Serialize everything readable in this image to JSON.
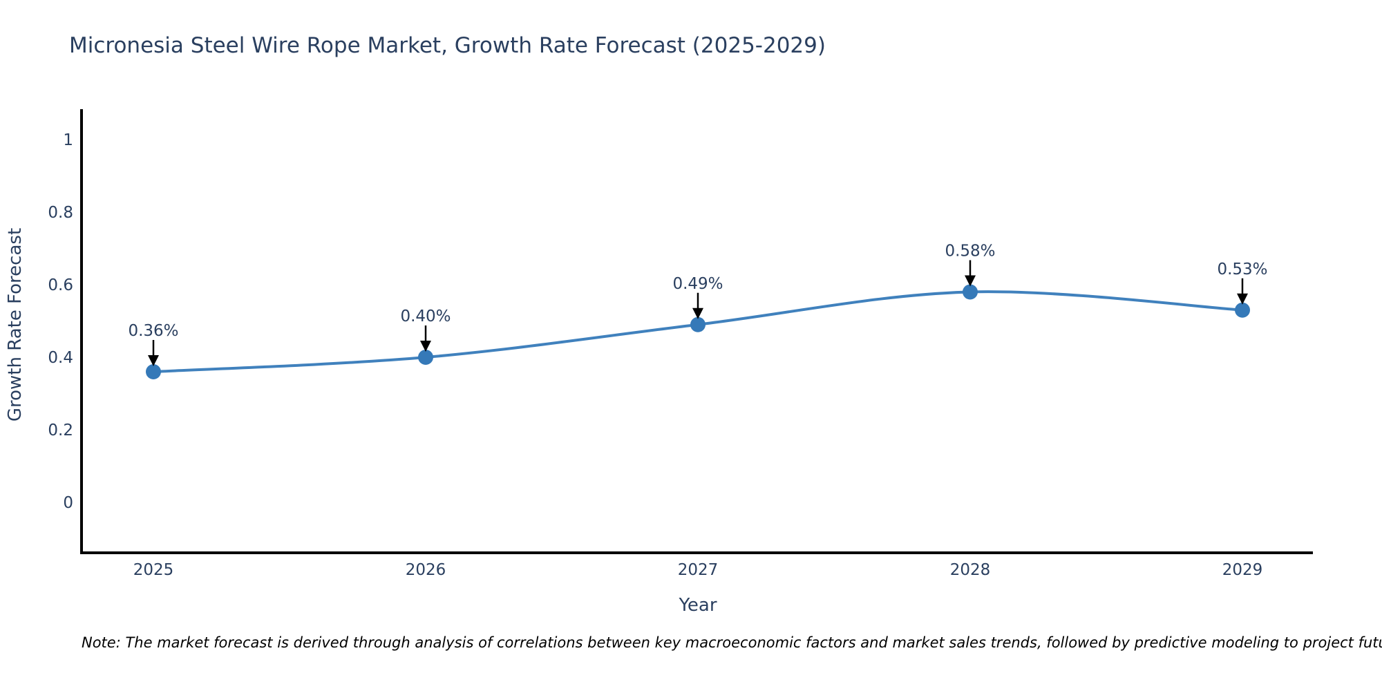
{
  "note": "Note: The market forecast is derived through analysis of correlations between key macroeconomic factors and market sales trends, followed by predictive modeling to project future sales",
  "chart_data": {
    "type": "line",
    "title": "Micronesia Steel Wire Rope Market, Growth Rate Forecast (2025-2029)",
    "x": [
      "2025",
      "2026",
      "2027",
      "2028",
      "2029"
    ],
    "series": [
      {
        "name": "Growth Rate Forecast",
        "values": [
          0.36,
          0.4,
          0.49,
          0.58,
          0.53
        ],
        "point_labels": [
          "0.36%",
          "0.40%",
          "0.49%",
          "0.58%",
          "0.53%"
        ]
      }
    ],
    "xlabel": "Year",
    "ylabel": "Growth Rate Forecast",
    "yticks": [
      0,
      0.2,
      0.4,
      0.6,
      0.8,
      1
    ],
    "ytick_labels": [
      "0",
      "0.2",
      "0.4",
      "0.6",
      "0.8",
      "1"
    ],
    "ylim": [
      -0.139,
      1.08
    ],
    "line_shape": "spline",
    "grid": false,
    "legend_position": "none",
    "colors": {
      "line": "#4081bd",
      "marker": "#3579b8",
      "axis": "#000000",
      "text": "#2a3f5f",
      "annotation_arrow": "#000000",
      "background": "#ffffff"
    }
  }
}
